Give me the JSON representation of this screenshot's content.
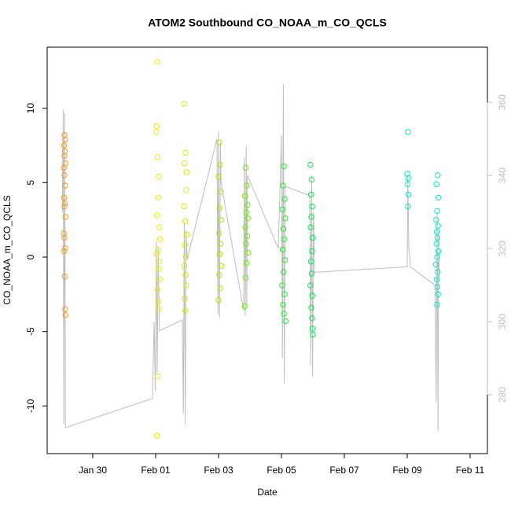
{
  "chart_data": {
    "type": "scatter",
    "title": "ATOM2 Southbound CO_NOAA_m_CO_QCLS",
    "x_label": "Date",
    "y_label": "CO_NOAA_m_CO_QCLS",
    "xlim": [
      28.55,
      42.55
    ],
    "xticks": [
      {
        "value": 30,
        "label": "Jan 30"
      },
      {
        "value": 32,
        "label": "Feb 01"
      },
      {
        "value": 34,
        "label": "Feb 03"
      },
      {
        "value": 36,
        "label": "Feb 05"
      },
      {
        "value": 38,
        "label": "Feb 07"
      },
      {
        "value": 40,
        "label": "Feb 09"
      },
      {
        "value": 42,
        "label": "Feb 11"
      }
    ],
    "ylim": [
      -13.2,
      14.1
    ],
    "yticks": [
      -10,
      -5,
      0,
      5,
      10
    ],
    "y2lim": [
      263.9,
      375.1
    ],
    "y2ticks": [
      280,
      300,
      320,
      340,
      360
    ],
    "y2_color": "#bebebe",
    "series": [
      {
        "type": "line",
        "axis": "y2",
        "color": "#bebebe",
        "x": [
          29.03,
          29.06,
          29.08,
          29.11,
          29.13,
          31.9,
          31.95,
          31.99,
          32.02,
          32.05,
          32.08,
          32.12,
          32.85,
          32.88,
          32.91,
          32.94,
          32.97,
          33.0,
          33.95,
          33.98,
          34.0,
          34.03,
          34.06,
          34.08,
          34.8,
          34.82,
          34.85,
          34.88,
          34.9,
          34.92,
          35.9,
          36.0,
          36.03,
          36.06,
          36.09,
          36.12,
          36.9,
          36.93,
          36.96,
          36.99,
          37.02,
          37.05,
          40.0,
          40.02,
          40.05,
          40.1,
          40.88,
          40.92,
          40.95,
          40.98,
          41.0,
          41.02
        ],
        "values": [
          330,
          358,
          272,
          357,
          271,
          279,
          300,
          281,
          322,
          286,
          320,
          297.5,
          300.5,
          275,
          327,
          272,
          325,
          317,
          350,
          302,
          352,
          301,
          349,
          338,
          303,
          345,
          301.5,
          348,
          304,
          340,
          320,
          351,
          290,
          365,
          283,
          337,
          334.5,
          288,
          340,
          285,
          330,
          313.5,
          315,
          340,
          320,
          315,
          310,
          278,
          330,
          270,
          325,
          312
        ]
      },
      {
        "color": "#f39a1e",
        "x": [
          29.1,
          29.12,
          29.09,
          29.11,
          29.1,
          29.13,
          29.08,
          29.1,
          29.12,
          29.09,
          29.11,
          29.1,
          29.13,
          29.08,
          29.1,
          29.12,
          29.09,
          29.11,
          29.12,
          29.13
        ],
        "values": [
          8.2,
          7.9,
          7.5,
          7.1,
          6.8,
          6.3,
          6.0,
          5.5,
          4.8,
          4.0,
          3.6,
          3.4,
          2.7,
          1.6,
          1.3,
          0.6,
          0.4,
          -1.3,
          -3.5,
          -3.9
        ]
      },
      {
        "color": "#e8ee00",
        "x": [
          32.05,
          32.03,
          32.02,
          32.06,
          32.1,
          32.08,
          32.04,
          32.12,
          32.14,
          32.07,
          32.03,
          32.11,
          32.09,
          32.13,
          32.05,
          32.08,
          32.1,
          32.06,
          32.04
        ],
        "values": [
          13.1,
          8.8,
          8.4,
          6.7,
          5.4,
          4.0,
          2.8,
          2.0,
          1.2,
          0.5,
          0.2,
          -0.3,
          -0.8,
          -1.5,
          -2.2,
          -3.0,
          -3.5,
          -8.0,
          -12.0
        ]
      },
      {
        "color": "#d2ee00",
        "x": [
          32.9,
          32.95,
          32.92,
          32.98,
          32.97,
          32.9,
          32.94,
          32.99,
          32.93,
          32.96,
          32.91,
          32.95,
          32.97,
          32.92,
          32.94
        ],
        "values": [
          10.3,
          7.0,
          6.3,
          5.7,
          4.5,
          3.4,
          2.4,
          1.5,
          0.8,
          0.0,
          -0.6,
          -1.2,
          -1.9,
          -2.8,
          -3.6
        ]
      },
      {
        "color": "#a4ee00",
        "x": [
          34.02,
          34.05,
          34.0,
          34.07,
          34.03,
          34.08,
          34.01,
          34.06,
          34.04,
          34.09,
          34.02,
          34.05,
          34.0
        ],
        "values": [
          7.7,
          6.2,
          5.4,
          4.4,
          3.3,
          2.5,
          1.6,
          0.9,
          0.2,
          -0.6,
          -1.2,
          -2.1,
          -2.9
        ]
      },
      {
        "color": "#6aee00",
        "x": [
          34.86,
          34.9,
          34.84,
          34.92,
          34.88,
          34.93,
          34.85,
          34.91,
          34.87,
          34.94,
          34.89,
          34.86,
          34.83
        ],
        "values": [
          6.0,
          4.8,
          4.1,
          3.5,
          3.0,
          2.6,
          2.0,
          1.4,
          0.9,
          0.3,
          -0.4,
          -1.4,
          -3.3
        ]
      },
      {
        "color": "#22ee30",
        "x": [
          36.08,
          36.05,
          36.1,
          36.03,
          36.12,
          36.06,
          36.09,
          36.04,
          36.11,
          36.07,
          36.02,
          36.1,
          36.05,
          36.08,
          36.13
        ],
        "values": [
          6.1,
          4.8,
          3.9,
          3.2,
          2.6,
          1.9,
          1.2,
          0.5,
          -0.2,
          -1.0,
          -1.9,
          -2.5,
          -3.2,
          -3.8,
          -4.3
        ]
      },
      {
        "color": "#00ee58",
        "x": [
          36.92,
          36.96,
          36.94,
          36.98,
          36.95,
          36.93,
          36.99,
          36.97,
          36.94,
          36.96,
          36.92,
          36.98,
          36.95,
          36.97,
          36.99,
          37.0
        ],
        "values": [
          6.2,
          5.2,
          4.2,
          3.4,
          2.7,
          2.0,
          1.3,
          0.4,
          -0.3,
          -1.1,
          -1.9,
          -2.6,
          -3.4,
          -4.1,
          -4.8,
          -5.2
        ]
      },
      {
        "color": "#00eeb4",
        "x": [
          40.02,
          40.0,
          40.03,
          40.01,
          40.04,
          40.02
        ],
        "values": [
          8.4,
          5.6,
          5.3,
          4.9,
          4.2,
          3.4
        ]
      },
      {
        "color": "#00eecc",
        "x": [
          40.97,
          40.93,
          40.99,
          40.95,
          40.92,
          40.98,
          40.94,
          40.96,
          40.93,
          40.99,
          40.95,
          40.91,
          40.97,
          40.94,
          40.96,
          40.98,
          40.95
        ],
        "values": [
          5.5,
          4.9,
          4.0,
          3.1,
          2.5,
          2.1,
          1.7,
          1.3,
          0.9,
          0.4,
          0.0,
          -0.5,
          -1.0,
          -1.5,
          -2.0,
          -2.5,
          -3.2
        ]
      }
    ]
  }
}
